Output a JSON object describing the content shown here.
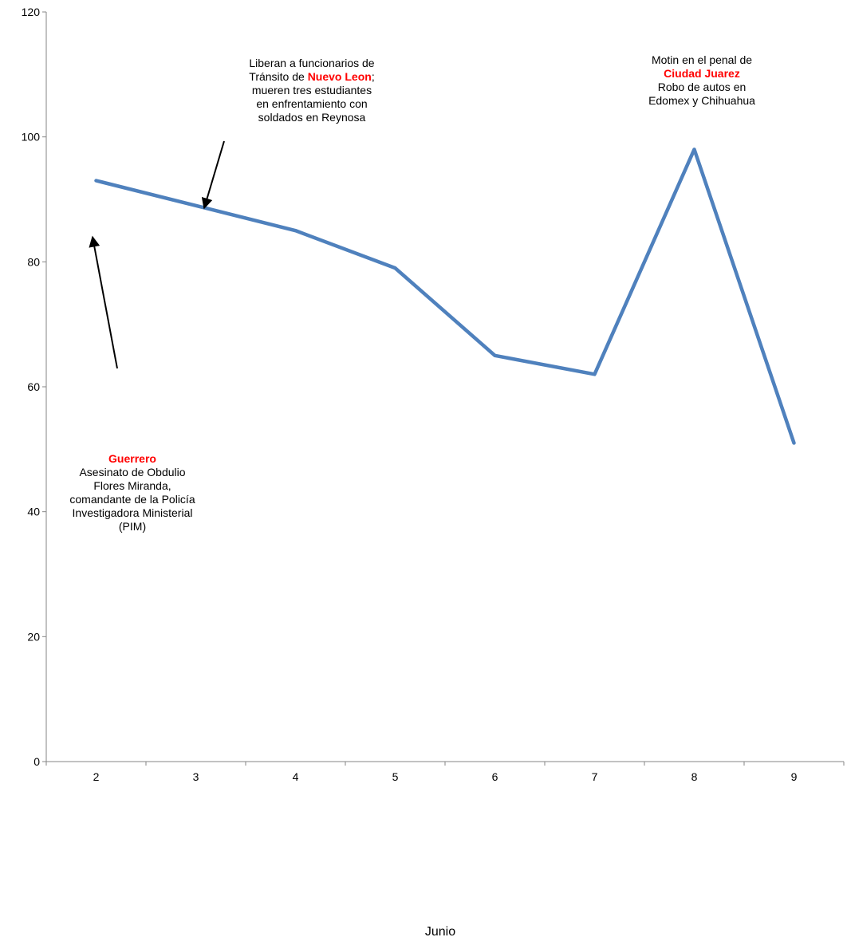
{
  "chart_data": {
    "type": "line",
    "categories": [
      "2",
      "3",
      "4",
      "5",
      "6",
      "7",
      "8",
      "9"
    ],
    "series": [
      {
        "values": [
          93,
          89,
          85,
          79,
          65,
          62,
          98,
          51
        ]
      }
    ],
    "xlabel": "Junio",
    "ylabel": "",
    "ylim": [
      0,
      120
    ],
    "yticks": [
      0,
      20,
      40,
      60,
      80,
      100,
      120
    ],
    "grid": false,
    "legend": "none",
    "line_color": "#4f81bd",
    "highlight_color": "#ff0000"
  },
  "annotations": {
    "guerrero": {
      "title": "Guerrero",
      "lines": [
        "Asesinato de Obdulio",
        "Flores Miranda,",
        "comandante de la Policía",
        "Investigadora Ministerial",
        "(PIM)"
      ]
    },
    "nuevo_leon": {
      "line1": "Liberan a funcionarios de",
      "line2_pre": "Tránsito de ",
      "line2_highlight": "Nuevo Leon",
      "line2_post": ";",
      "lines": [
        "mueren tres estudiantes",
        "en enfrentamiento con",
        "soldados en Reynosa"
      ]
    },
    "ciudad_juarez": {
      "line1": "Motin en el penal de",
      "highlight": "Ciudad Juarez",
      "lines": [
        "Robo de autos en",
        "Edomex y Chihuahua"
      ]
    }
  }
}
